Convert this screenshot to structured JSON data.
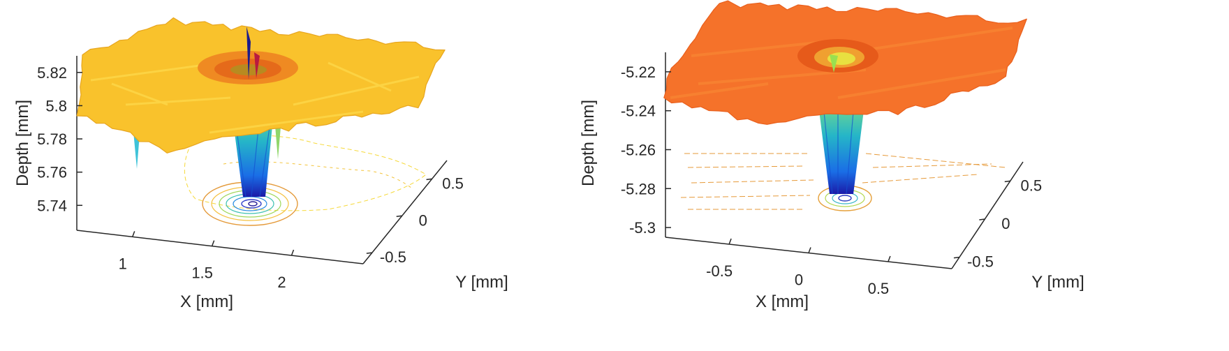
{
  "chart_data": [
    {
      "type": "surface",
      "title": "",
      "xlabel": "X [mm]",
      "ylabel": "Y [mm]",
      "zlabel": "Depth [mm]",
      "xlim": [
        0.65,
        2.45
      ],
      "ylim": [
        -0.65,
        0.75
      ],
      "zlim": [
        5.725,
        5.83
      ],
      "x_ticks": [
        1,
        1.5,
        2
      ],
      "x_tick_labels": [
        "1",
        "1.5",
        "2"
      ],
      "y_ticks": [
        -0.5,
        0,
        0.5
      ],
      "y_tick_labels": [
        "-0.5",
        "0",
        "0.5"
      ],
      "z_ticks": [
        5.74,
        5.76,
        5.78,
        5.8,
        5.82
      ],
      "z_tick_labels": [
        "5.74",
        "5.76",
        "5.78",
        "5.8",
        "5.82"
      ],
      "surface_level": 5.797,
      "crater": {
        "x": 1.7,
        "y": 0.15,
        "bottom_depth": 5.74
      },
      "colormap": "parula",
      "surface_colors": [
        "#ffe020",
        "#f9c030",
        "#f08a1e"
      ],
      "contour_projection": true,
      "grid": false,
      "legend": "none"
    },
    {
      "type": "surface",
      "title": "",
      "xlabel": "X [mm]",
      "ylabel": "Y [mm]",
      "zlabel": "Depth [mm]",
      "xlim": [
        -0.9,
        0.9
      ],
      "ylim": [
        -0.65,
        0.75
      ],
      "zlim": [
        -5.305,
        -5.21
      ],
      "x_ticks": [
        -0.5,
        0,
        0.5
      ],
      "x_tick_labels": [
        "-0.5",
        "0",
        "0.5"
      ],
      "y_ticks": [
        -0.5,
        0,
        0.5
      ],
      "y_tick_labels": [
        "-0.5",
        "0",
        "0.5"
      ],
      "z_ticks": [
        -5.3,
        -5.28,
        -5.26,
        -5.24,
        -5.22
      ],
      "z_tick_labels": [
        "-5.3",
        "-5.28",
        "-5.26",
        "-5.24",
        "-5.22"
      ],
      "surface_level": -5.235,
      "crater": {
        "x": 0.1,
        "y": 0.1,
        "bottom_depth": -5.283
      },
      "colormap": "parula",
      "surface_colors": [
        "#f5702a",
        "#f25a20",
        "#ffb020"
      ],
      "contour_projection": true,
      "grid": false,
      "legend": "none"
    }
  ]
}
